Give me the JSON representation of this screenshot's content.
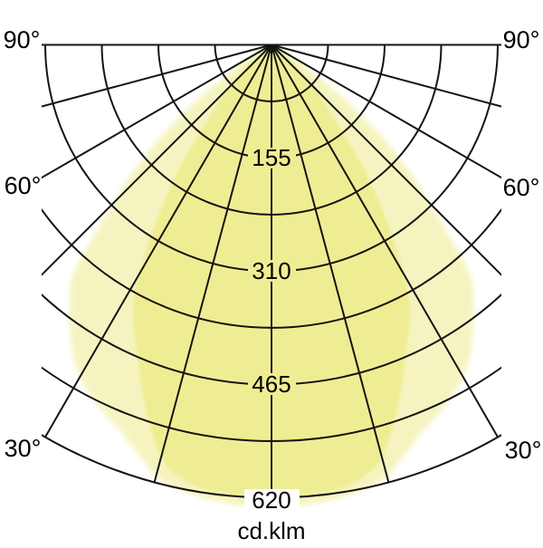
{
  "chart_data": {
    "type": "polar-photometric",
    "description": "Luminous intensity distribution curve (polar diagram), pole at top, 0 deg pointing down",
    "unit_label": "cd.klm",
    "radial_axis": {
      "min": 0,
      "max": 620,
      "ring_step_value": 77.5,
      "labeled_rings": [
        155,
        310,
        465,
        620
      ]
    },
    "radial_tick_labels": [
      "155",
      "310",
      "465",
      "620"
    ],
    "angle_labels": {
      "left": [
        "90°",
        "60°",
        "30°"
      ],
      "right": [
        "90°",
        "60°",
        "30°"
      ]
    },
    "angle_line_step_deg": 15,
    "angle_range_deg": [
      -90,
      90
    ],
    "colors": {
      "beam_main": "#efed93",
      "beam_secondary": "#f5f4c0",
      "grid": "#141414",
      "text": "#000000",
      "background": "#ffffff"
    },
    "series": [
      {
        "name": "beam-secondary-wide-lobe",
        "color": "#f5f4c0",
        "symmetric": true,
        "points_angle_value": [
          [
            0,
            635
          ],
          [
            8,
            628
          ],
          [
            14,
            616
          ],
          [
            18,
            590
          ],
          [
            21,
            570
          ],
          [
            24,
            556
          ],
          [
            28,
            537
          ],
          [
            32,
            510
          ],
          [
            35,
            481
          ],
          [
            38,
            450
          ],
          [
            41,
            413
          ],
          [
            44,
            330
          ],
          [
            48,
            248
          ],
          [
            52,
            160
          ],
          [
            56,
            75
          ],
          [
            60,
            25
          ],
          [
            63,
            0
          ]
        ]
      },
      {
        "name": "beam-main-lobe",
        "color": "#efed93",
        "symmetric": true,
        "points_angle_value": [
          [
            0,
            620
          ],
          [
            8,
            616
          ],
          [
            13,
            600
          ],
          [
            16,
            572
          ],
          [
            20,
            513
          ],
          [
            24,
            455
          ],
          [
            28,
            405
          ],
          [
            31,
            340
          ],
          [
            34,
            270
          ],
          [
            37,
            205
          ],
          [
            40,
            141
          ],
          [
            44,
            95
          ],
          [
            48,
            58
          ],
          [
            52,
            28
          ],
          [
            56,
            8
          ],
          [
            58,
            0
          ]
        ]
      }
    ]
  }
}
